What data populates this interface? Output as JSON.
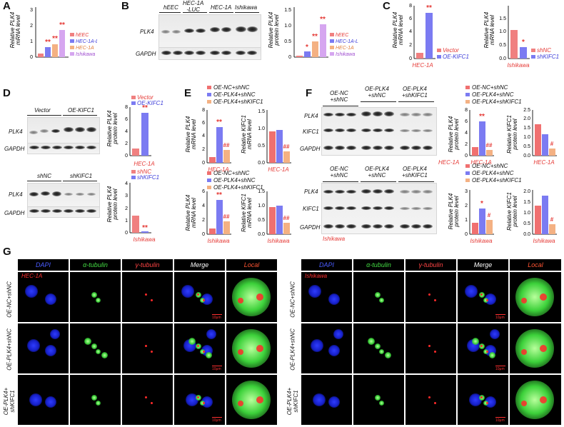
{
  "panels": {
    "A": {
      "label": "A",
      "ylabel": "Relative PLK4 mRNA level",
      "legend": [
        "hEEC",
        "HEC-1A-LUC",
        "HEC-1A",
        "Ishikawa"
      ],
      "yticks": [
        "0",
        "1",
        "2",
        "3"
      ],
      "sig": [
        "**",
        "**",
        "**"
      ]
    },
    "B": {
      "label": "B",
      "blot_headers": [
        "hEEC",
        "HEC-1A -LUC",
        "HEC-1A",
        "Ishikawa"
      ],
      "rows": [
        "PLK4",
        "GAPDH"
      ],
      "ylabel": "Relative PLK4 protein level",
      "yticks": [
        "0",
        "0.5",
        "1.0",
        "1.5"
      ],
      "legend": [
        "hEEC",
        "HEC-1A-LUC",
        "HEC-1A",
        "Ishikawa"
      ],
      "sig": [
        "*",
        "**",
        "**"
      ]
    },
    "C": {
      "label": "C",
      "left": {
        "ylabel": "Relative PLK4 mRNA level",
        "yticks": [
          "0",
          "2",
          "4",
          "6",
          "8"
        ],
        "legend": [
          "Vector",
          "OE-KIFC1"
        ],
        "cell": "HEC-1A",
        "sig": "**"
      },
      "right": {
        "ylabel": "Relative PLK4 mRNA level",
        "yticks": [
          "0.0",
          "0.5",
          "1.0",
          "1.5"
        ],
        "legend": [
          "shNC",
          "shKIFC1"
        ],
        "cell": "Ishikawa",
        "sig": "*"
      }
    },
    "D": {
      "label": "D",
      "top": {
        "headers": [
          "Vector",
          "OE-KIFC1"
        ],
        "rows": [
          "PLK4",
          "GAPDH"
        ],
        "ylabel": "Relative PLK4 protein level",
        "yticks": [
          "0",
          "2",
          "4",
          "6",
          "8"
        ],
        "legend": [
          "Vector",
          "OE-KIFC1"
        ],
        "cell": "HEC-1A",
        "sig": "**"
      },
      "bottom": {
        "headers": [
          "shNC",
          "shKIFC1"
        ],
        "rows": [
          "PLK4",
          "GAPDH"
        ],
        "ylabel": "Relative PLK4 protein level",
        "yticks": [
          "0",
          "1",
          "2",
          "3",
          "4"
        ],
        "legend": [
          "shNC",
          "shKIFC1"
        ],
        "cell": "Ishikawa",
        "sig": "**"
      }
    },
    "E": {
      "label": "E",
      "legend": [
        "OE-NC+shNC",
        "OE-PLK4+shNC",
        "OE-PLK4+shKIFC1"
      ],
      "top": {
        "plk4": {
          "ylabel": "Relative PLK4 mRNA level",
          "yticks": [
            "0",
            "2",
            "4",
            "6",
            "8"
          ],
          "sig": [
            "**",
            "##"
          ]
        },
        "kifc1": {
          "ylabel": "Relative KIFC1 mRNA level",
          "yticks": [
            "0.0",
            "0.5",
            "1.0",
            "1.5"
          ],
          "sig": [
            "##"
          ]
        },
        "cell": "HEC-1A"
      },
      "bottom": {
        "plk4": {
          "ylabel": "Relative PLK4 mRNA level",
          "yticks": [
            "0",
            "2",
            "4",
            "6"
          ],
          "sig": [
            "**",
            "##"
          ]
        },
        "kifc1": {
          "ylabel": "Relative KIFC1 mRNA level",
          "yticks": [
            "0.0",
            "0.5",
            "1.0",
            "1.5"
          ],
          "sig": [
            "##"
          ]
        },
        "cell": "Ishikawa"
      }
    },
    "F": {
      "label": "F",
      "headers": [
        "OE-NC +shNC",
        "OE-PLK4 +shNC",
        "OE-PLK4 +shKIFC1"
      ],
      "rows": [
        "PLK4",
        "KIFC1",
        "GAPDH"
      ],
      "legend": [
        "OE-NC+shNC",
        "OE-PLK4+shNC",
        "OE-PLK4+shKIFC1"
      ],
      "top": {
        "cell": "HEC-1A",
        "plk4": {
          "ylabel": "Relative PLK4 protein level",
          "yticks": [
            "0",
            "2",
            "4",
            "6",
            "8"
          ],
          "sig": [
            "**",
            "##"
          ]
        },
        "kifc1": {
          "ylabel": "Relative KIFC1 protein level",
          "yticks": [
            "0.0",
            "0.5",
            "1.0",
            "1.5",
            "2.0",
            "2.5"
          ],
          "sig": [
            "#"
          ]
        }
      },
      "bottom": {
        "cell": "Ishikawa",
        "plk4": {
          "ylabel": "Relative PLK4 protein level",
          "yticks": [
            "0",
            "1",
            "2",
            "3"
          ],
          "sig": [
            "*",
            "#"
          ]
        },
        "kifc1": {
          "ylabel": "Relative KIFC1 protein level",
          "yticks": [
            "0.0",
            "0.5",
            "1.0",
            "1.5",
            "2.0"
          ],
          "sig": [
            "#"
          ]
        }
      }
    },
    "G": {
      "label": "G",
      "columns": [
        "DAPI",
        "α-tubulin",
        "γ-tubulin",
        "Merge",
        "Local"
      ],
      "left_cell": "HEC-1A",
      "right_cell": "Ishikawa",
      "rows": [
        "OE-NC+shNC",
        "OE-PLK4+shNC",
        "OE-PLK4+ shKIFC1"
      ],
      "scale": "10μm"
    }
  },
  "colors": {
    "hEEC": "#f08080",
    "HEC-1A-LUC": "#7b7bf2",
    "HEC-1A": "#f4b183",
    "Ishikawa": "#d6a6f0",
    "c1": "#f07070",
    "c2": "#7b7bf2",
    "c3": "#f4b183",
    "sig": "#e53935"
  }
}
